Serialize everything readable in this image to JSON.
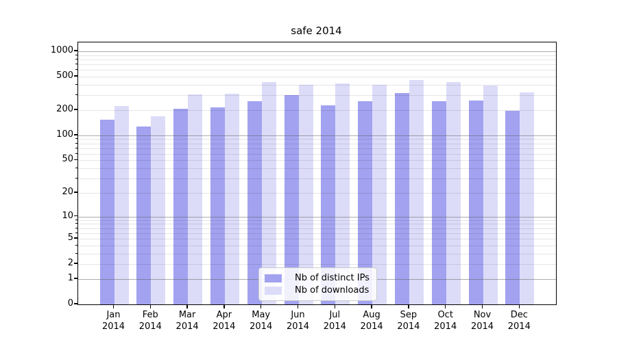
{
  "chart_data": {
    "type": "bar",
    "title": "safe 2014",
    "yscale": "log1p",
    "ylim": [
      0,
      1280
    ],
    "yticks": [
      "0",
      "1",
      "2",
      "5",
      "10",
      "20",
      "50",
      "100",
      "200",
      "500",
      "1000"
    ],
    "ytick_values": [
      0,
      1,
      2,
      5,
      10,
      20,
      50,
      100,
      200,
      500,
      1000
    ],
    "grid": {
      "major_values": [
        1,
        10,
        100,
        1000
      ],
      "minor_values": [
        2,
        3,
        4,
        5,
        6,
        7,
        8,
        9,
        20,
        30,
        40,
        50,
        60,
        70,
        80,
        90,
        200,
        300,
        400,
        500,
        600,
        700,
        800,
        900
      ]
    },
    "categories": [
      {
        "line1": "Jan",
        "line2": "2014"
      },
      {
        "line1": "Feb",
        "line2": "2014"
      },
      {
        "line1": "Mar",
        "line2": "2014"
      },
      {
        "line1": "Apr",
        "line2": "2014"
      },
      {
        "line1": "May",
        "line2": "2014"
      },
      {
        "line1": "Jun",
        "line2": "2014"
      },
      {
        "line1": "Jul",
        "line2": "2014"
      },
      {
        "line1": "Aug",
        "line2": "2014"
      },
      {
        "line1": "Sep",
        "line2": "2014"
      },
      {
        "line1": "Oct",
        "line2": "2014"
      },
      {
        "line1": "Nov",
        "line2": "2014"
      },
      {
        "line1": "Dec",
        "line2": "2014"
      }
    ],
    "series": [
      {
        "name": "Nb of distinct IPs",
        "color": "#a2a2f0",
        "values": [
          154,
          127,
          207,
          215,
          253,
          300,
          229,
          256,
          319,
          253,
          258,
          198
        ]
      },
      {
        "name": "Nb of downloads",
        "color": "#dcdcf9",
        "values": [
          223,
          169,
          307,
          316,
          430,
          401,
          416,
          401,
          454,
          430,
          394,
          326
        ]
      }
    ],
    "legend_position": "lower center"
  }
}
